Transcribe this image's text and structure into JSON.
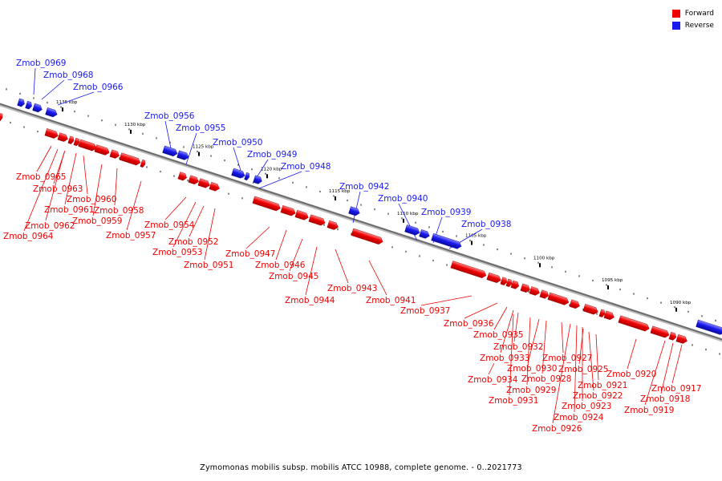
{
  "legend": {
    "forward": {
      "label": "Forward",
      "color": "#ee0000"
    },
    "reverse": {
      "label": "Reverse",
      "color": "#1a1aee"
    }
  },
  "caption": "Zymomonas mobilis subsp. mobilis ATCC 10988, complete genome. - 0..2021773",
  "ticks": [
    {
      "kbp": 1135,
      "label": "1135 kbp"
    },
    {
      "kbp": 1130,
      "label": "1130 kbp"
    },
    {
      "kbp": 1125,
      "label": "1125 kbp"
    },
    {
      "kbp": 1120,
      "label": "1120 kbp"
    },
    {
      "kbp": 1115,
      "label": "1115 kbp"
    },
    {
      "kbp": 1110,
      "label": "1110 kbp"
    },
    {
      "kbp": 1105,
      "label": "1105 kbp"
    },
    {
      "kbp": 1100,
      "label": "1100 kbp"
    },
    {
      "kbp": 1095,
      "label": "1095 kbp"
    },
    {
      "kbp": 1090,
      "label": "1090 kbp"
    }
  ],
  "reverse_genes": [
    "Zmob_0969",
    "Zmob_0968",
    "Zmob_0966",
    "Zmob_0956",
    "Zmob_0955",
    "Zmob_0950",
    "Zmob_0949",
    "Zmob_0948",
    "Zmob_0942",
    "Zmob_0940",
    "Zmob_0939",
    "Zmob_0938"
  ],
  "forward_genes": [
    "Zmob_0965",
    "Zmob_0963",
    "Zmob_0960",
    "Zmob_0961",
    "Zmob_0959",
    "Zmob_0962",
    "Zmob_0964",
    "Zmob_0958",
    "Zmob_0957",
    "Zmob_0954",
    "Zmob_0952",
    "Zmob_0953",
    "Zmob_0951",
    "Zmob_0947",
    "Zmob_0946",
    "Zmob_0945",
    "Zmob_0944",
    "Zmob_0943",
    "Zmob_0941",
    "Zmob_0937",
    "Zmob_0936",
    "Zmob_0935",
    "Zmob_0932",
    "Zmob_0933",
    "Zmob_0930",
    "Zmob_0934",
    "Zmob_0928",
    "Zmob_0929",
    "Zmob_0931",
    "Zmob_0927",
    "Zmob_0925",
    "Zmob_0921",
    "Zmob_0922",
    "Zmob_0923",
    "Zmob_0924",
    "Zmob_0926",
    "Zmob_0920",
    "Zmob_0917",
    "Zmob_0918",
    "Zmob_0919"
  ]
}
